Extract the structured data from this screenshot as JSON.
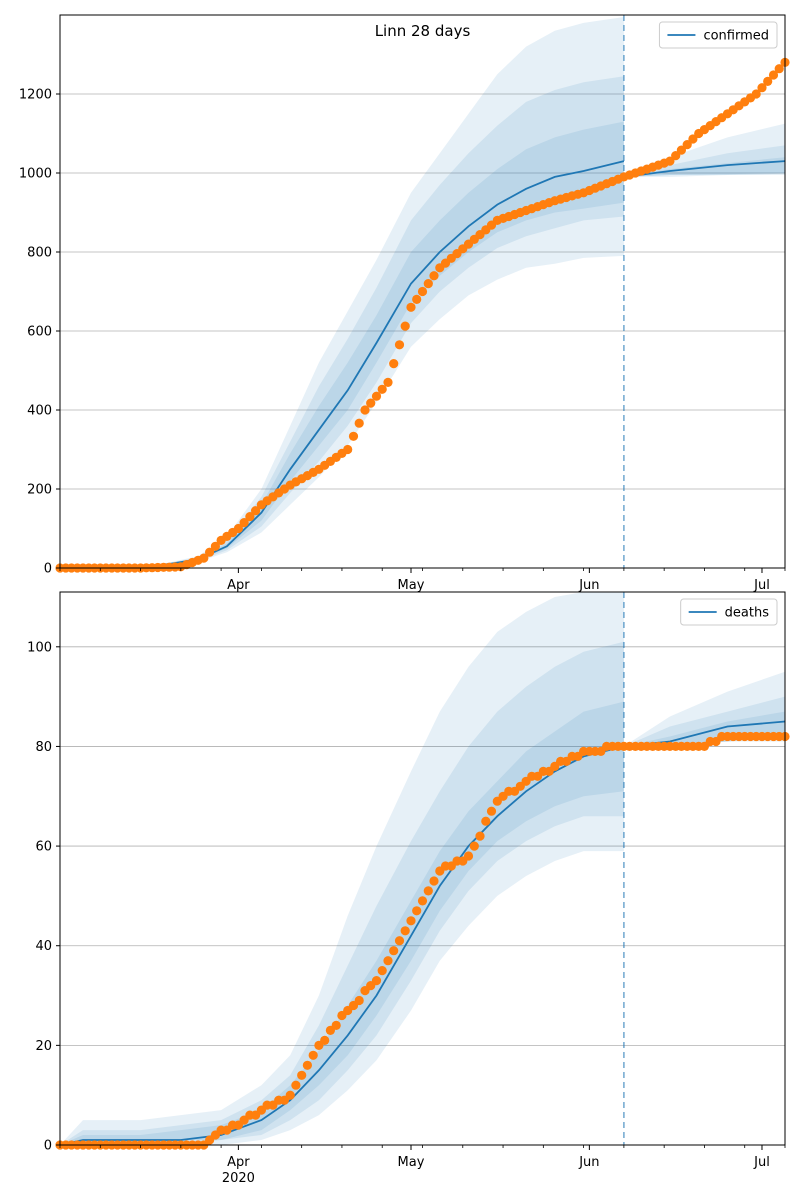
{
  "chart_data": [
    {
      "type": "line",
      "title": "Linn 28 days",
      "xlabel": "",
      "ylabel": "",
      "ylim": [
        0,
        1400
      ],
      "yticks": [
        0,
        200,
        400,
        600,
        800,
        1000,
        1200
      ],
      "xlim": [
        "2020-03-01",
        "2020-07-05"
      ],
      "xticks": [
        {
          "date": "2020-04-01",
          "label": "Apr",
          "sublabel": "2020"
        },
        {
          "date": "2020-05-01",
          "label": "May",
          "sublabel": ""
        },
        {
          "date": "2020-06-01",
          "label": "Jun",
          "sublabel": ""
        },
        {
          "date": "2020-07-01",
          "label": "Jul",
          "sublabel": ""
        }
      ],
      "forecast_start": "2020-06-07",
      "grid": "horizontal",
      "legend": {
        "position": "top-right",
        "entries": [
          "confirmed"
        ]
      },
      "series": [
        {
          "name": "confirmed",
          "kind": "model-median",
          "color": "#1f77b4",
          "x": [
            "2020-03-01",
            "2020-03-15",
            "2020-03-20",
            "2020-03-25",
            "2020-03-30",
            "2020-04-05",
            "2020-04-10",
            "2020-04-15",
            "2020-04-20",
            "2020-04-25",
            "2020-05-01",
            "2020-05-06",
            "2020-05-11",
            "2020-05-16",
            "2020-05-21",
            "2020-05-26",
            "2020-05-31",
            "2020-06-07"
          ],
          "values": [
            0,
            3,
            10,
            22,
            55,
            140,
            250,
            350,
            450,
            570,
            720,
            800,
            865,
            920,
            960,
            990,
            1005,
            1030
          ]
        },
        {
          "name": "",
          "kind": "observed",
          "color": "#ff7f0e",
          "x": [
            "2020-03-01",
            "2020-03-15",
            "2020-03-22",
            "2020-03-26",
            "2020-03-29",
            "2020-04-01",
            "2020-04-05",
            "2020-04-10",
            "2020-04-15",
            "2020-04-20",
            "2020-04-23",
            "2020-04-27",
            "2020-05-01",
            "2020-05-06",
            "2020-05-11",
            "2020-05-16",
            "2020-05-21",
            "2020-05-26",
            "2020-05-31",
            "2020-06-07",
            "2020-06-15",
            "2020-06-20",
            "2020-06-25",
            "2020-06-30",
            "2020-07-05"
          ],
          "values": [
            0,
            0,
            3,
            25,
            70,
            100,
            160,
            210,
            250,
            300,
            400,
            470,
            660,
            760,
            820,
            880,
            905,
            930,
            950,
            990,
            1030,
            1100,
            1150,
            1200,
            1280
          ]
        }
      ],
      "bands": [
        {
          "lower": [
            0,
            2,
            7,
            16,
            40,
            90,
            160,
            230,
            310,
            420,
            560,
            630,
            690,
            730,
            760,
            770,
            785,
            790
          ],
          "upper": [
            0,
            5,
            14,
            30,
            80,
            200,
            360,
            520,
            650,
            780,
            950,
            1050,
            1150,
            1250,
            1320,
            1360,
            1380,
            1395
          ]
        },
        {
          "lower": [
            0,
            2,
            8,
            18,
            45,
            105,
            190,
            270,
            360,
            470,
            620,
            700,
            760,
            810,
            840,
            860,
            880,
            890
          ],
          "upper": [
            0,
            4,
            13,
            27,
            70,
            180,
            320,
            460,
            580,
            710,
            880,
            970,
            1050,
            1120,
            1180,
            1210,
            1230,
            1245
          ]
        },
        {
          "lower": [
            0,
            3,
            9,
            20,
            50,
            120,
            220,
            310,
            400,
            520,
            670,
            740,
            800,
            850,
            880,
            900,
            910,
            925
          ],
          "upper": [
            0,
            4,
            12,
            25,
            62,
            160,
            290,
            410,
            520,
            640,
            800,
            880,
            950,
            1010,
            1060,
            1090,
            1110,
            1130
          ]
        }
      ],
      "forecast_series": {
        "x": [
          "2020-06-07",
          "2020-06-15",
          "2020-06-25",
          "2020-07-05"
        ],
        "median": [
          990,
          1005,
          1020,
          1030
        ],
        "bands": [
          {
            "lower": [
              990,
              990,
              995,
              995
            ],
            "upper": [
              1000,
              1040,
              1090,
              1125
            ]
          },
          {
            "lower": [
              990,
              995,
              995,
              998
            ],
            "upper": [
              995,
              1020,
              1050,
              1070
            ]
          },
          {
            "lower": [
              990,
              995,
              997,
              1000
            ],
            "upper": [
              993,
              1010,
              1025,
              1040
            ]
          }
        ]
      }
    },
    {
      "type": "line",
      "title": "",
      "xlabel": "",
      "ylabel": "",
      "ylim": [
        0,
        111
      ],
      "yticks": [
        0,
        20,
        40,
        60,
        80,
        100
      ],
      "xlim": [
        "2020-03-01",
        "2020-07-05"
      ],
      "xticks": [
        {
          "date": "2020-04-01",
          "label": "Apr",
          "sublabel": "2020"
        },
        {
          "date": "2020-05-01",
          "label": "May",
          "sublabel": ""
        },
        {
          "date": "2020-06-01",
          "label": "Jun",
          "sublabel": ""
        },
        {
          "date": "2020-07-01",
          "label": "Jul",
          "sublabel": ""
        }
      ],
      "forecast_start": "2020-06-07",
      "grid": "horizontal",
      "legend": {
        "position": "top-right",
        "entries": [
          "deaths"
        ]
      },
      "series": [
        {
          "name": "deaths",
          "kind": "model-median",
          "color": "#1f77b4",
          "x": [
            "2020-03-01",
            "2020-03-05",
            "2020-03-15",
            "2020-03-22",
            "2020-03-29",
            "2020-04-05",
            "2020-04-10",
            "2020-04-15",
            "2020-04-20",
            "2020-04-25",
            "2020-05-01",
            "2020-05-06",
            "2020-05-11",
            "2020-05-16",
            "2020-05-21",
            "2020-05-26",
            "2020-05-31",
            "2020-06-07"
          ],
          "values": [
            0,
            1,
            1,
            1,
            2,
            5,
            9,
            15,
            22,
            30,
            42,
            52,
            60,
            66,
            71,
            75,
            78,
            80
          ]
        },
        {
          "name": "",
          "kind": "observed",
          "color": "#ff7f0e",
          "x": [
            "2020-03-01",
            "2020-03-26",
            "2020-03-28",
            "2020-04-01",
            "2020-04-05",
            "2020-04-10",
            "2020-04-15",
            "2020-04-20",
            "2020-04-25",
            "2020-05-01",
            "2020-05-06",
            "2020-05-11",
            "2020-05-16",
            "2020-05-21",
            "2020-05-26",
            "2020-05-31",
            "2020-06-07",
            "2020-06-15",
            "2020-06-20",
            "2020-06-25",
            "2020-06-30",
            "2020-07-05"
          ],
          "values": [
            0,
            0,
            2,
            4,
            7,
            10,
            20,
            27,
            33,
            45,
            55,
            58,
            69,
            73,
            76,
            79,
            80,
            80,
            80,
            82,
            82,
            82
          ]
        }
      ],
      "bands": [
        {
          "lower": [
            0,
            0,
            0,
            0,
            0,
            1,
            3,
            6,
            11,
            17,
            27,
            37,
            44,
            50,
            54,
            57,
            59,
            59
          ],
          "upper": [
            0,
            5,
            5,
            6,
            7,
            12,
            18,
            30,
            46,
            60,
            75,
            87,
            96,
            103,
            107,
            110,
            111,
            111
          ]
        },
        {
          "lower": [
            0,
            0,
            0,
            0,
            1,
            2,
            5,
            9,
            15,
            22,
            33,
            43,
            51,
            57,
            61,
            64,
            66,
            66
          ],
          "upper": [
            0,
            3,
            3,
            4,
            5,
            9,
            14,
            24,
            36,
            48,
            61,
            71,
            80,
            87,
            92,
            96,
            99,
            101
          ]
        },
        {
          "lower": [
            0,
            0,
            0,
            1,
            1,
            3,
            7,
            12,
            18,
            26,
            37,
            47,
            55,
            61,
            65,
            68,
            70,
            71
          ],
          "upper": [
            0,
            2,
            2,
            3,
            4,
            7,
            12,
            19,
            28,
            37,
            49,
            59,
            67,
            73,
            79,
            83,
            87,
            89
          ]
        }
      ],
      "forecast_series": {
        "x": [
          "2020-06-07",
          "2020-06-15",
          "2020-06-25",
          "2020-07-05"
        ],
        "median": [
          80,
          81,
          84,
          85
        ],
        "bands": [
          {
            "lower": [
              80,
              80,
              81,
              81
            ],
            "upper": [
              80,
              86,
              91,
              95
            ]
          },
          {
            "lower": [
              80,
              80,
              81,
              82
            ],
            "upper": [
              80,
              84,
              87,
              90
            ]
          },
          {
            "lower": [
              80,
              80,
              81,
              82
            ],
            "upper": [
              80,
              82,
              85,
              87
            ]
          }
        ]
      }
    }
  ]
}
